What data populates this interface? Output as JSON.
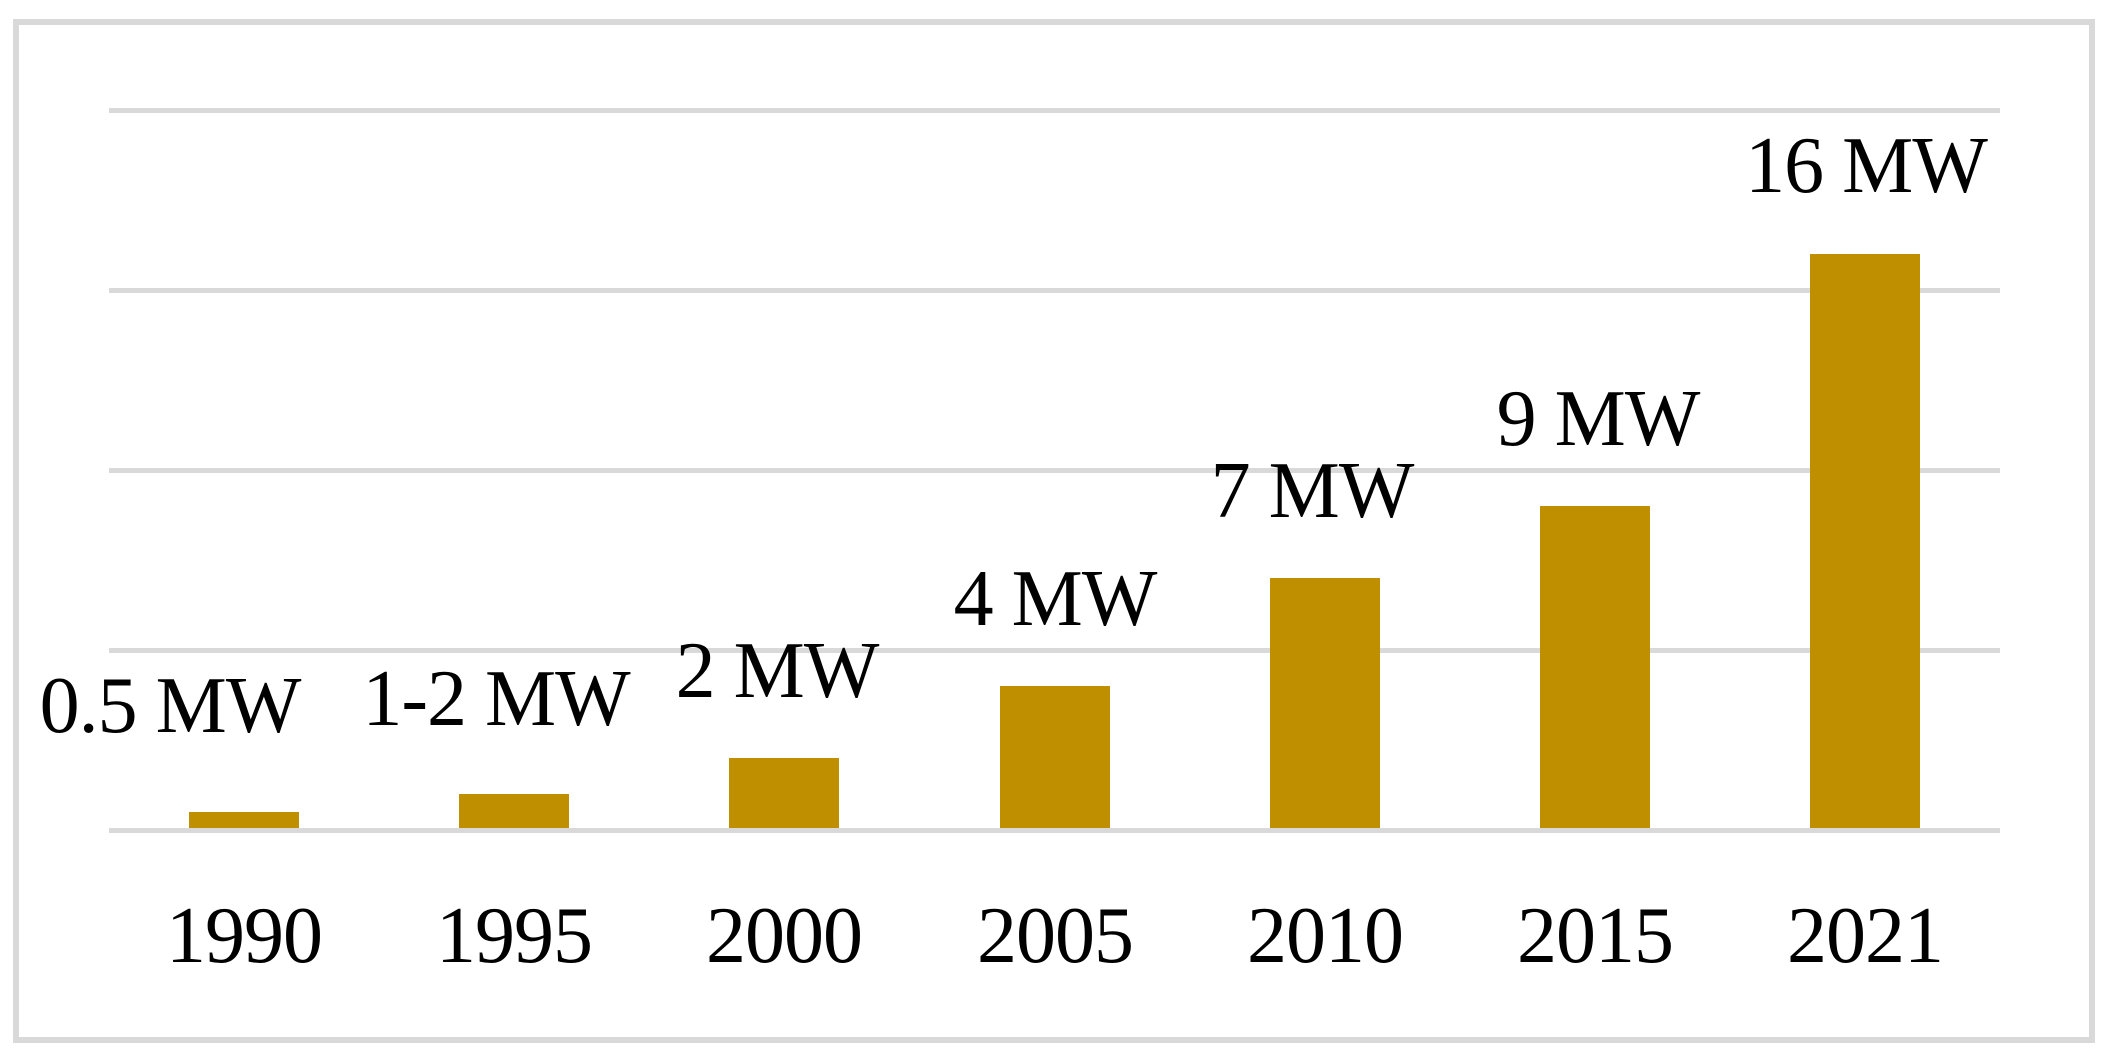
{
  "chart_data": {
    "type": "bar",
    "title": "",
    "xlabel": "",
    "ylabel": "",
    "categories": [
      "1990",
      "1995",
      "2000",
      "2005",
      "2010",
      "2015",
      "2021"
    ],
    "values": [
      0.5,
      1,
      2,
      4,
      7,
      9,
      16
    ],
    "bar_labels": [
      "0.5 MW",
      "1-2 MW",
      "2 MW",
      "4 MW",
      "7 MW",
      "9 MW",
      "16 MW"
    ],
    "unit": "MW",
    "ylim": [
      0,
      20
    ],
    "gridline_values": [
      0,
      5,
      10,
      15,
      20
    ],
    "grid": true,
    "legend": false,
    "bar_color": "#BF8F00",
    "gridline_color": "#D9D9D9",
    "frame_color": "#D9D9D9",
    "text_color": "#000000",
    "background": "#FFFFFF"
  }
}
